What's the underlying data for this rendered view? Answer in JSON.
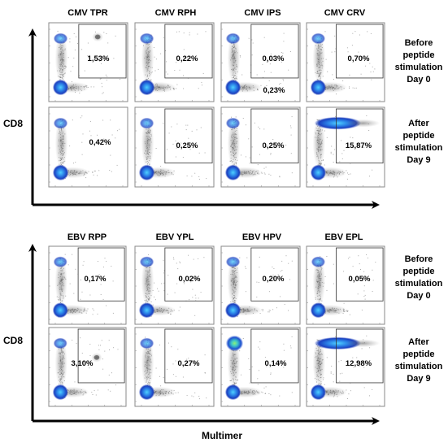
{
  "colors": {
    "background": "#ffffff",
    "axis": "#000000",
    "plot_frame": "#777777",
    "gate": "#333333",
    "scatter_gray": "#555555",
    "density_low": "#1d4fd8",
    "density_high": "#2a8ee0",
    "density_peak": "#39d07a"
  },
  "figure": {
    "top_block": {
      "column_headers": [
        "CMV TPR",
        "CMV RPH",
        "CMV IPS",
        "CMV CRV"
      ],
      "row_labels": [
        [
          "Before",
          "peptide",
          "stimulation",
          "Day 0"
        ],
        [
          "After",
          "peptide",
          "stimulation",
          "Day 9"
        ]
      ],
      "y_axis_label": "CD8",
      "panels": [
        [
          {
            "gate_value": "1,53%",
            "has_gate_box": true
          },
          {
            "gate_value": "0,22%",
            "has_gate_box": true
          },
          {
            "gate_value": "0,03%",
            "has_gate_box": true,
            "extra_value": "0,23%"
          },
          {
            "gate_value": "0,70%",
            "has_gate_box": true
          }
        ],
        [
          {
            "gate_value": "0,42%",
            "has_gate_box": false
          },
          {
            "gate_value": "0,25%",
            "has_gate_box": true
          },
          {
            "gate_value": "0,25%",
            "has_gate_box": true
          },
          {
            "gate_value": "15,87%",
            "has_gate_box": true
          }
        ]
      ]
    },
    "bottom_block": {
      "column_headers": [
        "EBV RPP",
        "EBV YPL",
        "EBV HPV",
        "EBV EPL"
      ],
      "row_labels": [
        [
          "Before",
          "peptide",
          "stimulation",
          "Day 0"
        ],
        [
          "After",
          "peptide",
          "stimulation",
          "Day 9"
        ]
      ],
      "y_axis_label": "CD8",
      "x_axis_label": "Multimer",
      "panels": [
        [
          {
            "gate_value": "0,17%",
            "has_gate_box": true
          },
          {
            "gate_value": "0,02%",
            "has_gate_box": true
          },
          {
            "gate_value": "0,20%",
            "has_gate_box": true
          },
          {
            "gate_value": "0,05%",
            "has_gate_box": true
          }
        ],
        [
          {
            "gate_value": "3,10%",
            "has_gate_box": true
          },
          {
            "gate_value": "0,27%",
            "has_gate_box": true
          },
          {
            "gate_value": "0,14%",
            "has_gate_box": true
          },
          {
            "gate_value": "12,98%",
            "has_gate_box": true
          }
        ]
      ]
    }
  }
}
